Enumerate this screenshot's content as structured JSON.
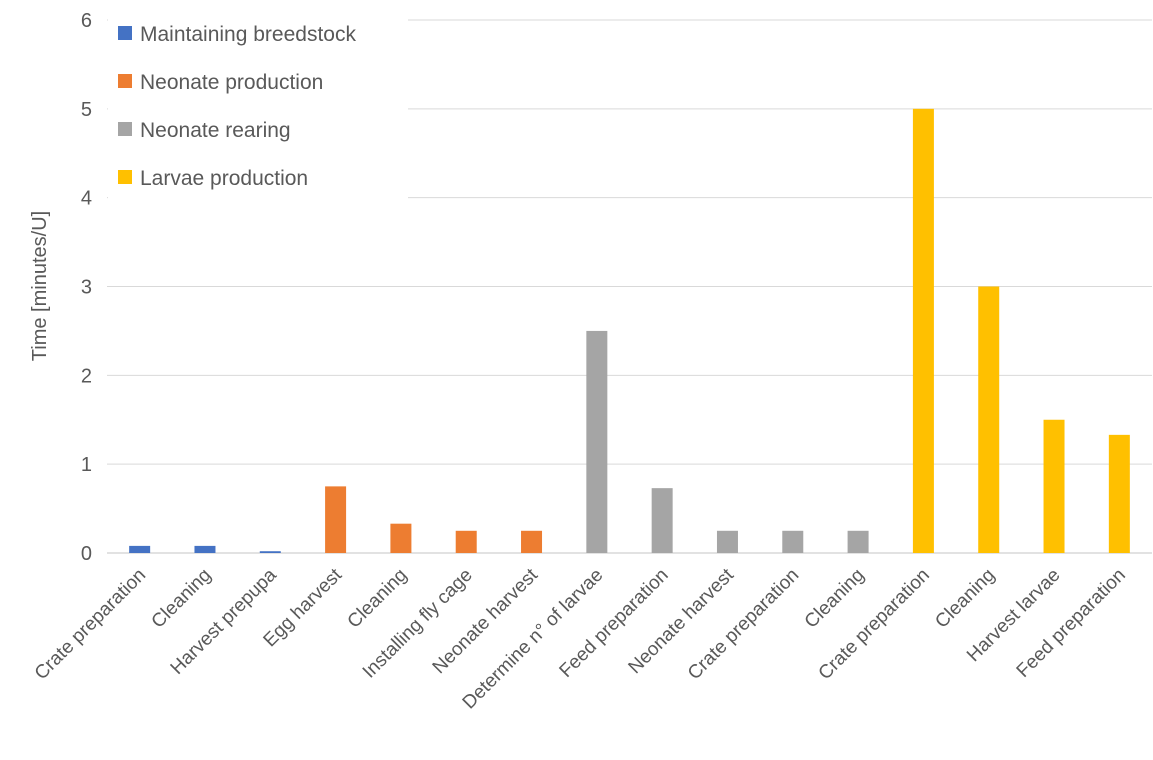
{
  "chart_data": {
    "type": "bar",
    "title": "",
    "xlabel": "",
    "ylabel": "Time [minutes/U]",
    "ylim": [
      0,
      6
    ],
    "yticks": [
      "0",
      "1",
      "2",
      "3",
      "4",
      "5",
      "6"
    ],
    "grid": true,
    "legend_position": "top-left",
    "categories": [
      "Crate preparation",
      "Cleaning",
      "Harvest prepupa",
      "Egg harvest",
      "Cleaning",
      "Installing fly cage",
      "Neonate harvest",
      "Determine n° of larvae",
      "Feed preparation",
      "Neonate harvest",
      "Crate preparation",
      "Cleaning",
      "Crate preparation",
      "Cleaning",
      "Harvest larvae",
      "Feed preparation"
    ],
    "series": [
      {
        "name": "Maintaining breedstock",
        "color": "#4472C4",
        "values": [
          0.08,
          0.08,
          0.02,
          null,
          null,
          null,
          null,
          null,
          null,
          null,
          null,
          null,
          null,
          null,
          null,
          null
        ]
      },
      {
        "name": "Neonate production",
        "color": "#ED7D31",
        "values": [
          null,
          null,
          null,
          0.75,
          0.33,
          0.25,
          0.25,
          null,
          null,
          null,
          null,
          null,
          null,
          null,
          null,
          null
        ]
      },
      {
        "name": "Neonate rearing",
        "color": "#A5A5A5",
        "values": [
          null,
          null,
          null,
          null,
          null,
          null,
          null,
          2.5,
          0.73,
          0.25,
          0.25,
          0.25,
          null,
          null,
          null,
          null
        ]
      },
      {
        "name": "Larvae production",
        "color": "#FFC000",
        "values": [
          null,
          null,
          null,
          null,
          null,
          null,
          null,
          null,
          null,
          null,
          null,
          null,
          5,
          3,
          1.5,
          1.33
        ]
      }
    ]
  }
}
